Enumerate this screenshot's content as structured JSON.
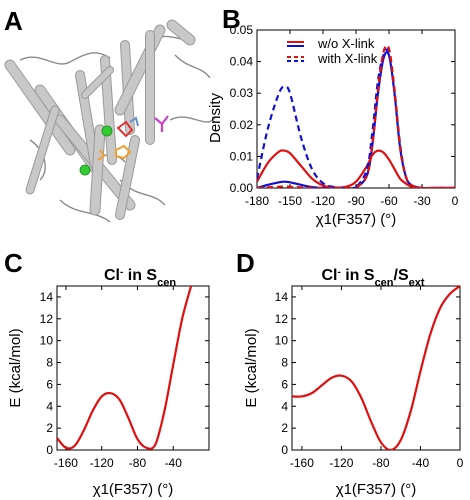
{
  "panels": {
    "A": {
      "letter": "A",
      "image_description_tag": "protein-ribbon-structure"
    },
    "B": {
      "letter": "B",
      "xlabel": "χ1(F357) (°)",
      "ylabel": "Density",
      "xticks": [
        "-180",
        "-150",
        "-120",
        "-90",
        "-60",
        "-30",
        "0"
      ],
      "yticks": [
        "0.00",
        "0.01",
        "0.02",
        "0.03",
        "0.04",
        "0.05"
      ],
      "legend": [
        {
          "label": "w/o X-link",
          "style": "solid"
        },
        {
          "label": "with X-link",
          "style": "dashed"
        }
      ]
    },
    "C": {
      "letter": "C",
      "title_main": "Cl",
      "title_sup": "-",
      "title_in": " in S",
      "title_sub": "cen",
      "xlabel": "χ1(F357) (°)",
      "ylabel": "E (kcal/mol)",
      "xticks": [
        "-160",
        "-120",
        "-80",
        "-40"
      ],
      "yticks": [
        "0",
        "2",
        "4",
        "6",
        "8",
        "10",
        "12",
        "14"
      ]
    },
    "D": {
      "letter": "D",
      "title_main": "Cl",
      "title_sup": "-",
      "title_in": " in S",
      "title_sub1": "cen",
      "title_slash": "/S",
      "title_sub2": "ext",
      "xlabel": "χ1(F357) (°)",
      "ylabel": "E (kcal/mol)",
      "xticks": [
        "-160",
        "-120",
        "-80",
        "-40",
        "0"
      ],
      "yticks": [
        "0",
        "2",
        "4",
        "6",
        "8",
        "10",
        "12",
        "14"
      ]
    }
  },
  "colors": {
    "red": "#e01010",
    "blue": "#1010d0",
    "gray": "#c8c8c8",
    "green": "#33cc33",
    "orange": "#f0a030",
    "magenta": "#d040d0",
    "steel": "#6a8fc0"
  },
  "chart_data": [
    {
      "panel": "B",
      "type": "line",
      "xlabel": "χ1(F357) (°)",
      "ylabel": "Density",
      "xlim": [
        -180,
        0
      ],
      "ylim": [
        0,
        0.05
      ],
      "x": [
        -180,
        -170,
        -160,
        -155,
        -150,
        -140,
        -130,
        -120,
        -110,
        -100,
        -90,
        -80,
        -75,
        -70,
        -65,
        -60,
        -55,
        -50,
        -45,
        -40,
        -30,
        -20,
        -10,
        0
      ],
      "series": [
        {
          "name": "w/o X-link",
          "color": "blue",
          "style": "solid",
          "values": [
            0.0,
            0.001,
            0.0018,
            0.002,
            0.0018,
            0.001,
            0.0003,
            0.0,
            0.0,
            0.0,
            0.0002,
            0.004,
            0.014,
            0.03,
            0.041,
            0.042,
            0.03,
            0.013,
            0.004,
            0.001,
            0.0,
            0.0,
            0.0,
            0.0
          ]
        },
        {
          "name": "w/o X-link",
          "color": "red",
          "style": "solid",
          "values": [
            0.002,
            0.008,
            0.0115,
            0.0118,
            0.011,
            0.007,
            0.003,
            0.0008,
            0.0002,
            0.0003,
            0.002,
            0.007,
            0.0105,
            0.0118,
            0.0112,
            0.009,
            0.006,
            0.003,
            0.0015,
            0.0005,
            0.0,
            0.0,
            0.0,
            0.0
          ]
        },
        {
          "name": "with X-link",
          "color": "blue",
          "style": "dashed",
          "values": [
            0.003,
            0.019,
            0.03,
            0.032,
            0.03,
            0.016,
            0.006,
            0.0015,
            0.0003,
            0.0001,
            0.0003,
            0.006,
            0.018,
            0.034,
            0.042,
            0.043,
            0.031,
            0.014,
            0.004,
            0.001,
            0.0,
            0.0,
            0.0,
            0.0
          ]
        },
        {
          "name": "with X-link",
          "color": "red",
          "style": "dashed",
          "values": [
            0.0,
            0.0002,
            0.0004,
            0.0005,
            0.0004,
            0.0002,
            0.0,
            0.0,
            0.0,
            0.0,
            0.0002,
            0.004,
            0.014,
            0.031,
            0.043,
            0.044,
            0.031,
            0.013,
            0.004,
            0.001,
            0.0,
            0.0,
            0.0,
            0.0
          ]
        }
      ]
    },
    {
      "panel": "C",
      "type": "line",
      "title": "Cl- in Scen",
      "xlabel": "χ1(F357) (°)",
      "ylabel": "E (kcal/mol)",
      "xlim": [
        -170,
        0
      ],
      "ylim": [
        0,
        15
      ],
      "x": [
        -170,
        -160,
        -150,
        -140,
        -130,
        -120,
        -110,
        -100,
        -90,
        -80,
        -70,
        -60,
        -50,
        -40,
        -30,
        -20
      ],
      "series": [
        {
          "name": "",
          "color": "red",
          "values": [
            1.1,
            0.2,
            0.4,
            1.8,
            3.6,
            4.9,
            5.2,
            4.6,
            2.9,
            1.0,
            0.2,
            0.5,
            3.5,
            7.8,
            12.0,
            15.0
          ]
        }
      ]
    },
    {
      "panel": "D",
      "type": "line",
      "title": "Cl- in Scen/Sext",
      "xlabel": "χ1(F357) (°)",
      "ylabel": "E (kcal/mol)",
      "xlim": [
        -170,
        0
      ],
      "ylim": [
        0,
        15
      ],
      "x": [
        -170,
        -160,
        -150,
        -140,
        -130,
        -120,
        -110,
        -100,
        -90,
        -80,
        -70,
        -60,
        -50,
        -40,
        -30,
        -20,
        -10,
        0
      ],
      "series": [
        {
          "name": "",
          "color": "red",
          "values": [
            4.9,
            4.9,
            5.2,
            5.9,
            6.6,
            6.8,
            6.3,
            4.8,
            2.6,
            0.7,
            0.0,
            0.9,
            3.5,
            7.2,
            10.6,
            13.0,
            14.3,
            15.0
          ]
        }
      ]
    }
  ]
}
